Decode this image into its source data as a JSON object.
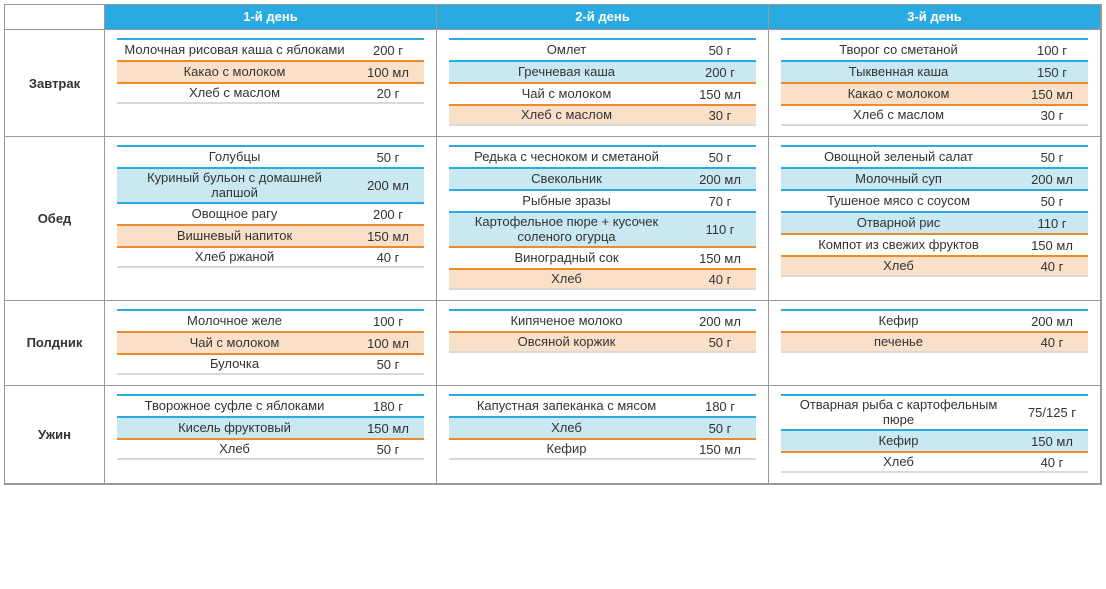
{
  "colors": {
    "header_bg": "#29abe2",
    "band_blue": "#c9e8f2",
    "band_orange": "#fbe0c9",
    "border_blue": "#29abe2",
    "border_orange": "#ec8a2c",
    "border_gray": "#d9d9d9"
  },
  "days": [
    "1-й день",
    "2-й день",
    "3-й день"
  ],
  "meals": [
    {
      "label": "Завтрак",
      "cols": [
        [
          {
            "name": "Молочная рисовая каша с яблоками",
            "amt": "200 г",
            "band": "none",
            "top": "blue"
          },
          {
            "name": "Какао с молоком",
            "amt": "100 мл",
            "band": "orange",
            "top": "orange"
          },
          {
            "name": "Хлеб с маслом",
            "amt": "20 г",
            "band": "none",
            "top": "orange"
          }
        ],
        [
          {
            "name": "Омлет",
            "amt": "50 г",
            "band": "none",
            "top": "blue"
          },
          {
            "name": "Гречневая каша",
            "amt": "200 г",
            "band": "blue",
            "top": "blue"
          },
          {
            "name": "Чай с молоком",
            "amt": "150 мл",
            "band": "none",
            "top": "orange"
          },
          {
            "name": "Хлеб с маслом",
            "amt": "30 г",
            "band": "orange",
            "top": "orange"
          }
        ],
        [
          {
            "name": "Творог со сметаной",
            "amt": "100 г",
            "band": "none",
            "top": "blue"
          },
          {
            "name": "Тыквенная каша",
            "amt": "150 г",
            "band": "blue",
            "top": "blue"
          },
          {
            "name": "Какао с молоком",
            "amt": "150 мл",
            "band": "orange",
            "top": "orange"
          },
          {
            "name": "Хлеб с маслом",
            "amt": "30 г",
            "band": "none",
            "top": "orange"
          }
        ]
      ]
    },
    {
      "label": "Обед",
      "cols": [
        [
          {
            "name": "Голубцы",
            "amt": "50 г",
            "band": "none",
            "top": "blue"
          },
          {
            "name": "Куриный бульон с домашней лапшой",
            "amt": "200 мл",
            "band": "blue",
            "top": "blue"
          },
          {
            "name": "Овощное рагу",
            "amt": "200 г",
            "band": "none",
            "top": "blue"
          },
          {
            "name": "Вишневый напиток",
            "amt": "150 мл",
            "band": "orange",
            "top": "orange"
          },
          {
            "name": "Хлеб ржаной",
            "amt": "40 г",
            "band": "none",
            "top": "orange"
          }
        ],
        [
          {
            "name": "Редька с чесноком и сметаной",
            "amt": "50 г",
            "band": "none",
            "top": "blue"
          },
          {
            "name": "Свекольник",
            "amt": "200 мл",
            "band": "blue",
            "top": "blue"
          },
          {
            "name": "Рыбные зразы",
            "amt": "70 г",
            "band": "none",
            "top": "blue"
          },
          {
            "name": "Картофельное пюре + кусочек соленого огурца",
            "amt": "110 г",
            "band": "blue",
            "top": "blue"
          },
          {
            "name": "Виноградный сок",
            "amt": "150 мл",
            "band": "none",
            "top": "orange"
          },
          {
            "name": "Хлеб",
            "amt": "40 г",
            "band": "orange",
            "top": "orange"
          }
        ],
        [
          {
            "name": "Овощной зеленый салат",
            "amt": "50 г",
            "band": "none",
            "top": "blue"
          },
          {
            "name": "Молочный суп",
            "amt": "200 мл",
            "band": "blue",
            "top": "blue"
          },
          {
            "name": "Тушеное мясо с соусом",
            "amt": "50 г",
            "band": "none",
            "top": "blue"
          },
          {
            "name": "Отварной рис",
            "amt": "110 г",
            "band": "blue",
            "top": "blue"
          },
          {
            "name": "Компот из свежих фруктов",
            "amt": "150 мл",
            "band": "none",
            "top": "orange"
          },
          {
            "name": "Хлеб",
            "amt": "40 г",
            "band": "orange",
            "top": "orange"
          }
        ]
      ]
    },
    {
      "label": "Полдник",
      "cols": [
        [
          {
            "name": "Молочное желе",
            "amt": "100 г",
            "band": "none",
            "top": "blue"
          },
          {
            "name": "Чай с молоком",
            "amt": "100 мл",
            "band": "orange",
            "top": "orange"
          },
          {
            "name": "Булочка",
            "amt": "50 г",
            "band": "none",
            "top": "orange"
          }
        ],
        [
          {
            "name": "Кипяченое молоко",
            "amt": "200 мл",
            "band": "none",
            "top": "blue"
          },
          {
            "name": "Овсяной коржик",
            "amt": "50 г",
            "band": "orange",
            "top": "orange"
          }
        ],
        [
          {
            "name": "Кефир",
            "amt": "200 мл",
            "band": "none",
            "top": "blue"
          },
          {
            "name": "печенье",
            "amt": "40 г",
            "band": "orange",
            "top": "orange"
          }
        ]
      ]
    },
    {
      "label": "Ужин",
      "cols": [
        [
          {
            "name": "Творожное суфле с яблоками",
            "amt": "180 г",
            "band": "none",
            "top": "blue"
          },
          {
            "name": "Кисель фруктовый",
            "amt": "150 мл",
            "band": "blue",
            "top": "blue"
          },
          {
            "name": "Хлеб",
            "amt": "50 г",
            "band": "none",
            "top": "orange"
          }
        ],
        [
          {
            "name": "Капустная запеканка с мясом",
            "amt": "180 г",
            "band": "none",
            "top": "blue"
          },
          {
            "name": "Хлеб",
            "amt": "50 г",
            "band": "blue",
            "top": "blue"
          },
          {
            "name": "Кефир",
            "amt": "150 мл",
            "band": "none",
            "top": "orange"
          }
        ],
        [
          {
            "name": "Отварная рыба с картофельным пюре",
            "amt": "75/125 г",
            "band": "none",
            "top": "blue"
          },
          {
            "name": "Кефир",
            "amt": "150 мл",
            "band": "blue",
            "top": "blue"
          },
          {
            "name": "Хлеб",
            "amt": "40 г",
            "band": "none",
            "top": "orange"
          }
        ]
      ]
    }
  ]
}
